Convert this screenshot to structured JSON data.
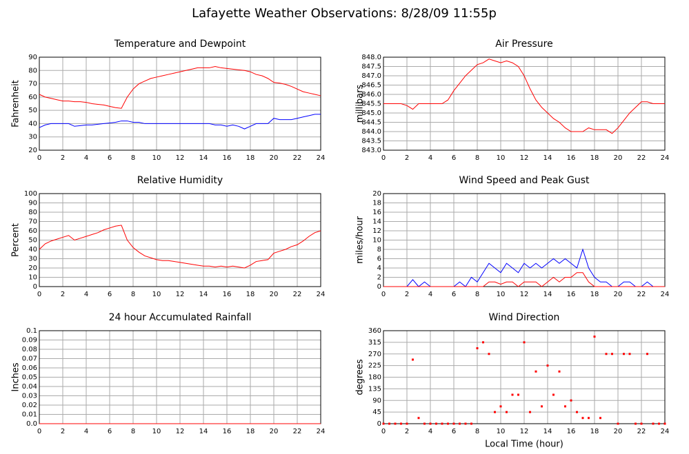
{
  "title": "Lafayette Weather Observations: 8/28/09 11:55p",
  "chart_data": [
    {
      "type": "line",
      "title": "Temperature and Dewpoint",
      "ylabel": "Fahrenheit",
      "x": [
        0,
        0.5,
        1,
        1.5,
        2,
        2.5,
        3,
        3.5,
        4,
        4.5,
        5,
        5.5,
        6,
        6.5,
        7,
        7.5,
        8,
        8.5,
        9,
        9.5,
        10,
        10.5,
        11,
        11.5,
        12,
        12.5,
        13,
        13.5,
        14,
        14.5,
        15,
        15.5,
        16,
        16.5,
        17,
        17.5,
        18,
        18.5,
        19,
        19.5,
        20,
        20.5,
        21,
        21.5,
        22,
        22.5,
        23,
        23.5,
        24
      ],
      "series": [
        {
          "color": "#ff0000",
          "values": [
            62,
            60,
            59,
            58,
            57,
            57,
            56.5,
            56.5,
            56,
            55,
            54.5,
            54,
            53,
            52,
            51.5,
            60,
            66,
            70,
            72,
            74,
            75,
            76,
            77,
            78,
            79,
            80,
            81,
            82,
            82,
            82,
            83,
            82,
            81.5,
            81,
            80.5,
            80,
            79,
            77,
            76,
            74,
            71,
            70.5,
            69.5,
            68,
            66,
            64,
            63,
            62,
            61
          ]
        },
        {
          "color": "#0000ff",
          "values": [
            37,
            39,
            40,
            40,
            40,
            40,
            38,
            38.5,
            39,
            39,
            39.5,
            40,
            40.5,
            41,
            42,
            42,
            41,
            41,
            40,
            40,
            40,
            40,
            40,
            40,
            40,
            40,
            40,
            40,
            40,
            40,
            39,
            39,
            38,
            39,
            38,
            36,
            38,
            40,
            40,
            40,
            44,
            43,
            43,
            43,
            44,
            45,
            46,
            47,
            47
          ]
        }
      ],
      "xlim": [
        0,
        24
      ],
      "xticks": [
        0,
        2,
        4,
        6,
        8,
        10,
        12,
        14,
        16,
        18,
        20,
        22,
        24
      ],
      "ylim": [
        20,
        90
      ],
      "yticks": [
        20,
        30,
        40,
        50,
        60,
        70,
        80,
        90
      ],
      "grid": true
    },
    {
      "type": "line",
      "title": "Air Pressure",
      "ylabel": "millibars",
      "x": [
        0,
        0.5,
        1,
        1.5,
        2,
        2.5,
        3,
        3.5,
        4,
        4.5,
        5,
        5.5,
        6,
        6.5,
        7,
        7.5,
        8,
        8.5,
        9,
        9.5,
        10,
        10.5,
        11,
        11.5,
        12,
        12.5,
        13,
        13.5,
        14,
        14.5,
        15,
        15.5,
        16,
        16.5,
        17,
        17.5,
        18,
        18.5,
        19,
        19.5,
        20,
        20.5,
        21,
        21.5,
        22,
        22.5,
        23,
        23.5,
        24
      ],
      "series": [
        {
          "color": "#ff0000",
          "values": [
            845.5,
            845.5,
            845.5,
            845.5,
            845.4,
            845.2,
            845.5,
            845.5,
            845.5,
            845.5,
            845.5,
            845.7,
            846.2,
            846.6,
            847.0,
            847.3,
            847.6,
            847.7,
            847.9,
            847.8,
            847.7,
            847.8,
            847.7,
            847.5,
            847.0,
            846.3,
            845.7,
            845.3,
            845.0,
            844.7,
            844.5,
            844.2,
            844.0,
            844.0,
            844.0,
            844.2,
            844.1,
            844.1,
            844.1,
            843.9,
            844.2,
            844.6,
            845.0,
            845.3,
            845.6,
            845.6,
            845.5,
            845.5,
            845.5
          ]
        }
      ],
      "xlim": [
        0,
        24
      ],
      "xticks": [
        0,
        2,
        4,
        6,
        8,
        10,
        12,
        14,
        16,
        18,
        20,
        22,
        24
      ],
      "ylim": [
        843,
        848
      ],
      "yticks": [
        {
          "value": 843,
          "label": "843.0"
        },
        {
          "value": 843.5,
          "label": "843.5"
        },
        {
          "value": 844,
          "label": "844.0"
        },
        {
          "value": 844.5,
          "label": "844.5"
        },
        {
          "value": 845,
          "label": "845.0"
        },
        {
          "value": 845.5,
          "label": "845.5"
        },
        {
          "value": 846,
          "label": "846.0"
        },
        {
          "value": 846.5,
          "label": "846.5"
        },
        {
          "value": 847,
          "label": "847.0"
        },
        {
          "value": 847.5,
          "label": "847.5"
        },
        {
          "value": 848,
          "label": "848.0"
        }
      ],
      "grid": true
    },
    {
      "type": "line",
      "title": "Relative Humidity",
      "ylabel": "Percent",
      "x": [
        0,
        0.5,
        1,
        1.5,
        2,
        2.5,
        3,
        3.5,
        4,
        4.5,
        5,
        5.5,
        6,
        6.5,
        7,
        7.5,
        8,
        8.5,
        9,
        9.5,
        10,
        10.5,
        11,
        11.5,
        12,
        12.5,
        13,
        13.5,
        14,
        14.5,
        15,
        15.5,
        16,
        16.5,
        17,
        17.5,
        18,
        18.5,
        19,
        19.5,
        20,
        20.5,
        21,
        21.5,
        22,
        22.5,
        23,
        23.5,
        24
      ],
      "series": [
        {
          "color": "#ff0000",
          "values": [
            40,
            46,
            49,
            51,
            53,
            55,
            50,
            52,
            54,
            56,
            58,
            61,
            63,
            65,
            66,
            50,
            42,
            37,
            33,
            31,
            29,
            28,
            28,
            27,
            26,
            25,
            24,
            23,
            22,
            22,
            21,
            22,
            21,
            22,
            21,
            20,
            23,
            27,
            28,
            29,
            36,
            38,
            40,
            43,
            45,
            49,
            54,
            58,
            60
          ]
        }
      ],
      "xlim": [
        0,
        24
      ],
      "xticks": [
        0,
        2,
        4,
        6,
        8,
        10,
        12,
        14,
        16,
        18,
        20,
        22,
        24
      ],
      "ylim": [
        0,
        100
      ],
      "yticks": [
        0,
        10,
        20,
        30,
        40,
        50,
        60,
        70,
        80,
        90,
        100
      ],
      "grid": true
    },
    {
      "type": "line",
      "title": "Wind Speed and Peak Gust",
      "ylabel": "miles/hour",
      "x": [
        0,
        0.5,
        1,
        1.5,
        2,
        2.5,
        3,
        3.5,
        4,
        4.5,
        5,
        5.5,
        6,
        6.5,
        7,
        7.5,
        8,
        8.5,
        9,
        9.5,
        10,
        10.5,
        11,
        11.5,
        12,
        12.5,
        13,
        13.5,
        14,
        14.5,
        15,
        15.5,
        16,
        16.5,
        17,
        17.5,
        18,
        18.5,
        19,
        19.5,
        20,
        20.5,
        21,
        21.5,
        22,
        22.5,
        23,
        23.5,
        24
      ],
      "series": [
        {
          "color": "#0000ff",
          "values": [
            0,
            0,
            0,
            0,
            0,
            1.5,
            0,
            1,
            0,
            0,
            0,
            0,
            0,
            1,
            0,
            2,
            1,
            3,
            5,
            4,
            3,
            5,
            4,
            3,
            5,
            4,
            5,
            4,
            5,
            6,
            5,
            6,
            5,
            4,
            8,
            4,
            2,
            1,
            1,
            0,
            0,
            1,
            1,
            0,
            0,
            1,
            0,
            0,
            0
          ]
        },
        {
          "color": "#ff0000",
          "values": [
            0,
            0,
            0,
            0,
            0,
            0,
            0,
            0,
            0,
            0,
            0,
            0,
            0,
            0,
            0,
            0,
            0,
            0,
            1,
            1,
            0.5,
            1,
            1,
            0,
            1,
            1,
            1,
            0,
            1,
            2,
            1,
            2,
            2,
            3,
            3,
            1,
            0,
            0,
            0,
            0,
            0,
            0,
            0,
            0,
            0,
            0,
            0,
            0,
            0
          ]
        }
      ],
      "xlim": [
        0,
        24
      ],
      "xticks": [
        0,
        2,
        4,
        6,
        8,
        10,
        12,
        14,
        16,
        18,
        20,
        22,
        24
      ],
      "ylim": [
        0,
        20
      ],
      "yticks": [
        0,
        2,
        4,
        6,
        8,
        10,
        12,
        14,
        16,
        18,
        20
      ],
      "grid": true
    },
    {
      "type": "line",
      "title": "24 hour Accumulated Rainfall",
      "ylabel": "Inches",
      "x": [
        0,
        24
      ],
      "series": [
        {
          "color": "#ff0000",
          "values": [
            0,
            0
          ]
        }
      ],
      "xlim": [
        0,
        24
      ],
      "xticks": [
        0,
        2,
        4,
        6,
        8,
        10,
        12,
        14,
        16,
        18,
        20,
        22,
        24
      ],
      "ylim": [
        0,
        0.1
      ],
      "yticks": [
        {
          "value": 0,
          "label": "0.0"
        },
        0.01,
        0.02,
        0.03,
        0.04,
        0.05,
        0.06,
        0.07,
        0.08,
        0.09,
        0.1
      ],
      "grid": true
    },
    {
      "type": "scatter",
      "title": "Wind Direction",
      "ylabel": "degrees",
      "xlabel": "Local Time (hour)",
      "x": [
        0,
        0.5,
        1,
        1.5,
        2,
        2.5,
        3,
        3.5,
        4,
        4.5,
        5,
        5.5,
        6,
        6.5,
        7,
        7.5,
        8,
        8.5,
        9,
        9.5,
        10,
        10.5,
        11,
        11.5,
        12,
        12.5,
        13,
        13.5,
        14,
        14.5,
        15,
        15.5,
        16,
        16.5,
        17,
        17.5,
        18,
        18.5,
        19,
        19.5,
        20,
        20.5,
        21,
        21.5,
        22,
        22.5,
        23,
        23.5,
        24
      ],
      "series": [
        {
          "color": "#ff0000",
          "values": [
            0,
            0,
            0,
            0,
            0,
            248,
            22,
            0,
            0,
            0,
            0,
            0,
            0,
            0,
            0,
            0,
            292,
            315,
            270,
            45,
            67,
            45,
            112,
            112,
            315,
            45,
            202,
            67,
            225,
            112,
            202,
            67,
            90,
            45,
            22,
            22,
            337,
            22,
            270,
            270,
            0,
            270,
            270,
            0,
            0,
            270,
            0,
            0,
            0
          ]
        }
      ],
      "xlim": [
        0,
        24
      ],
      "xticks": [
        0,
        2,
        4,
        6,
        8,
        10,
        12,
        14,
        16,
        18,
        20,
        22,
        24
      ],
      "ylim": [
        0,
        360
      ],
      "yticks": [
        0,
        45,
        90,
        135,
        180,
        225,
        270,
        315,
        360
      ],
      "grid": true
    }
  ]
}
